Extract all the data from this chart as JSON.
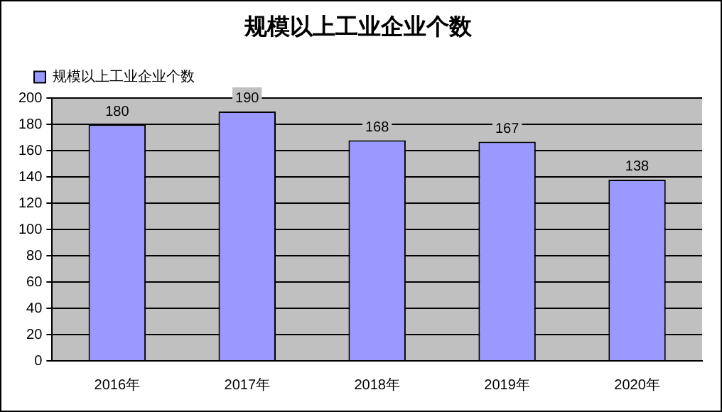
{
  "chart_data": {
    "type": "bar",
    "title": "规模以上工业企业个数",
    "categories": [
      "2016年",
      "2017年",
      "2018年",
      "2019年",
      "2020年"
    ],
    "series": [
      {
        "name": "规模以上工业企业个数",
        "color": "#9999ff",
        "values": [
          180,
          190,
          168,
          167,
          138
        ]
      }
    ],
    "ylim": [
      0,
      200
    ],
    "yticks": [
      0,
      20,
      40,
      60,
      80,
      100,
      120,
      140,
      160,
      180,
      200
    ],
    "grid": "y",
    "legend": "top left",
    "data_labels": true
  }
}
